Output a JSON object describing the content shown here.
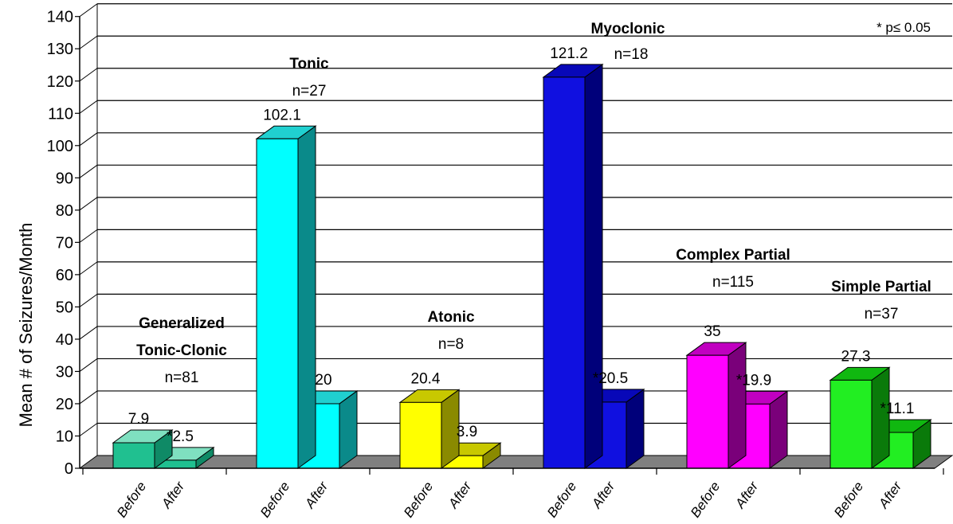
{
  "chart_data": {
    "type": "bar",
    "ylabel": "Mean # of Seizures/Month",
    "ylim": [
      0,
      140
    ],
    "yticks": [
      0,
      10,
      20,
      30,
      40,
      50,
      60,
      70,
      80,
      90,
      100,
      110,
      120,
      130,
      140
    ],
    "grid": true,
    "annotation": "* p≤ 0.05",
    "bar_labels": [
      "Before",
      "After"
    ],
    "groups": [
      {
        "title_lines": [
          "Generalized",
          "Tonic-Clonic"
        ],
        "n": "n=81",
        "color": "#20c090",
        "side": "#0f8a66",
        "top": "#7fe0c0",
        "before": 7.9,
        "after": 2.5,
        "before_label": "7.9",
        "after_label": "2.5",
        "after_sig": true
      },
      {
        "title_lines": [
          "Tonic"
        ],
        "n": "n=27",
        "color": "#00ffff",
        "side": "#0a8a8a",
        "top": "#20d0d0",
        "before": 102.1,
        "after": 20,
        "before_label": "102.1",
        "after_label": "20",
        "after_sig": false
      },
      {
        "title_lines": [
          "Atonic"
        ],
        "n": "n=8",
        "color": "#ffff00",
        "side": "#8a8a00",
        "top": "#c8c800",
        "before": 20.4,
        "after": 3.9,
        "before_label": "20.4",
        "after_label": "3.9",
        "after_sig": false
      },
      {
        "title_lines": [
          "Myoclonic"
        ],
        "n": "n=18",
        "color": "#1010e0",
        "side": "#00007a",
        "top": "#0808b8",
        "before": 121.2,
        "after": 20.5,
        "before_label": "121.2",
        "after_label": "20.5",
        "after_sig": true
      },
      {
        "title_lines": [
          "Complex Partial"
        ],
        "n": "n=115",
        "color": "#ff00ff",
        "side": "#7a007a",
        "top": "#c000c0",
        "before": 35,
        "after": 19.9,
        "before_label": "35",
        "after_label": "19.9",
        "after_sig": true
      },
      {
        "title_lines": [
          "Simple Partial"
        ],
        "n": "n=37",
        "color": "#22ee22",
        "side": "#0a7a0a",
        "top": "#10b810",
        "before": 27.3,
        "after": 11.1,
        "before_label": "27.3",
        "after_label": "11.1",
        "after_sig": true
      }
    ]
  }
}
